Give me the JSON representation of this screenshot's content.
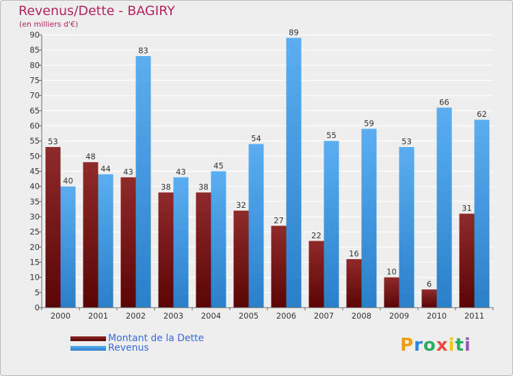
{
  "header": {
    "title": "Revenus/Dette - BAGIRY",
    "subtitle": "(en milliers d'€)"
  },
  "legend": {
    "items": [
      {
        "label": "Montant de la Dette",
        "color": "#8b1c1c"
      },
      {
        "label": "Revenus",
        "color": "#4aa3ea"
      }
    ]
  },
  "brand": {
    "letters": [
      "P",
      "r",
      "o",
      "x",
      "i",
      "t",
      "i"
    ],
    "colors": [
      "#f39c12",
      "#2e86de",
      "#27ae60",
      "#e74c3c",
      "#f1c40f",
      "#27ae60",
      "#9b59b6"
    ]
  },
  "chart_data": {
    "type": "bar",
    "title": "Revenus/Dette - BAGIRY",
    "subtitle": "(en milliers d'€)",
    "categories": [
      "2000",
      "2001",
      "2002",
      "2003",
      "2004",
      "2005",
      "2006",
      "2007",
      "2008",
      "2009",
      "2010",
      "2011"
    ],
    "series": [
      {
        "name": "Montant de la Dette",
        "color": "#8b1c1c",
        "values": [
          53,
          48,
          43,
          38,
          38,
          32,
          27,
          22,
          16,
          10,
          6,
          31
        ]
      },
      {
        "name": "Revenus",
        "color": "#4aa3ea",
        "values": [
          40,
          44,
          83,
          43,
          45,
          54,
          89,
          55,
          59,
          53,
          66,
          62
        ]
      }
    ],
    "ylim": [
      0,
      90
    ],
    "yticks": [
      0,
      5,
      10,
      15,
      20,
      25,
      30,
      35,
      40,
      45,
      50,
      55,
      60,
      65,
      70,
      75,
      80,
      85,
      90
    ],
    "grid": true,
    "legend_position": "bottom-left"
  }
}
